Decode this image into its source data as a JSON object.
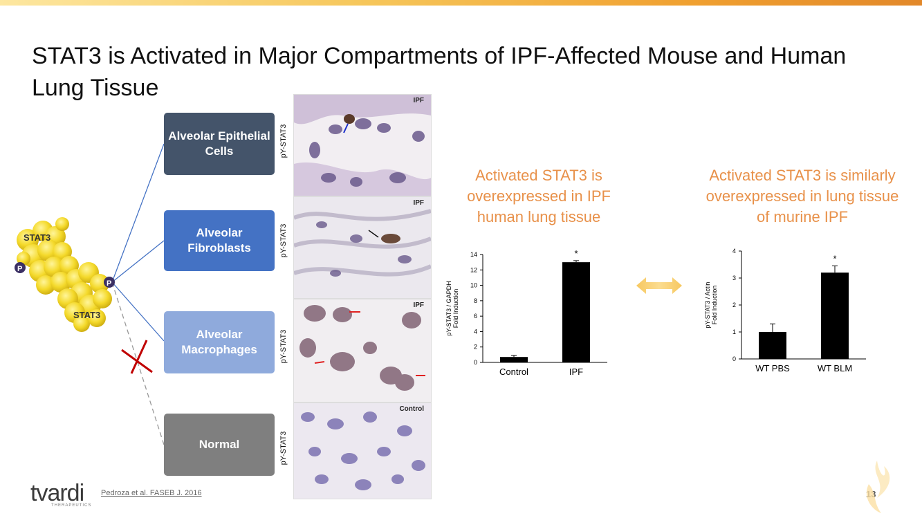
{
  "title": "STAT3 is Activated in Major Compartments of IPF-Affected Mouse and Human Lung Tissue",
  "molecule": {
    "label1": "STAT3",
    "label2": "STAT3",
    "phospho": "P"
  },
  "compartments": [
    {
      "label": "Alveolar Epithelial Cells",
      "color": "#44546a"
    },
    {
      "label": "Alveolar Fibroblasts",
      "color": "#4472c4"
    },
    {
      "label": "Alveolar Macrophages",
      "color": "#8faadc"
    },
    {
      "label": "Normal",
      "color": "#7f7f7f"
    }
  ],
  "micrographs": [
    {
      "stain_label": "pY-STAT3",
      "tag": "IPF"
    },
    {
      "stain_label": "pY-STAT3",
      "tag": "IPF"
    },
    {
      "stain_label": "pY-STAT3",
      "tag": "IPF"
    },
    {
      "stain_label": "pY-STAT3",
      "tag": "Control"
    }
  ],
  "human_text": "Activated STAT3 is overexpressed in IPF human lung tissue",
  "murine_text": "Activated STAT3 is similarly overexpressed in lung tissue of murine IPF",
  "chart_data": [
    {
      "type": "bar",
      "categories": [
        "Control",
        "IPF"
      ],
      "values": [
        0.7,
        13.0
      ],
      "error": [
        0.2,
        0.2
      ],
      "ylabel": "pY-STAT3 / GAPDH Fold Induction",
      "ylabel_lines": [
        "pY-STAT3 / GAPDH",
        "Fold Induction"
      ],
      "ylim": [
        0,
        14
      ],
      "yticks": [
        "0",
        "2",
        "4",
        "6",
        "8",
        "10",
        "12",
        "14"
      ],
      "annotations": [
        "",
        "*"
      ]
    },
    {
      "type": "bar",
      "categories": [
        "WT PBS",
        "WT BLM"
      ],
      "values": [
        1.0,
        3.2
      ],
      "error": [
        0.3,
        0.25
      ],
      "ylabel": "pY-STAT3 / Actin Fold Induction",
      "ylabel_lines": [
        "pY-STAT3 / Actin",
        "Fold Induction"
      ],
      "ylim": [
        0,
        4
      ],
      "yticks": [
        "0",
        "1",
        "2",
        "3",
        "4"
      ],
      "annotations": [
        "",
        "*"
      ]
    }
  ],
  "footer": {
    "citation": "Pedroza et al. FASEB J. 2016",
    "page": "13",
    "logo": "tvardi",
    "logo_sub": "THERAPEUTICS"
  }
}
